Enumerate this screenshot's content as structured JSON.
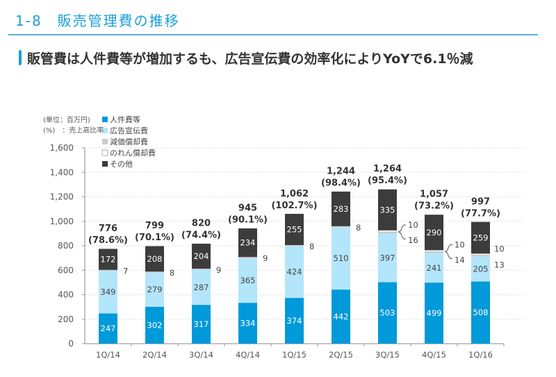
{
  "header": {
    "section_title": "1-8　販売管理費の推移",
    "headline": "販管費は人件費等が増加するも、広告宣伝費の効率化によりYoYで6.1％減"
  },
  "chart_data": {
    "type": "bar",
    "stacked": true,
    "title": "",
    "unit_notes": [
      "(単位：百万円)",
      "(%)　：売上高比率"
    ],
    "xlabel": "",
    "ylabel": "",
    "ylim": [
      0,
      1600
    ],
    "yticks": [
      0,
      200,
      400,
      600,
      800,
      1000,
      1200,
      1400,
      1600
    ],
    "ytick_labels": [
      "0",
      "200",
      "400",
      "600",
      "800",
      "1,000",
      "1,200",
      "1,400",
      "1,600"
    ],
    "grid": true,
    "legend_position": "top-left",
    "categories": [
      "1Q/14",
      "2Q/14",
      "3Q/14",
      "4Q/14",
      "1Q/15",
      "2Q/15",
      "3Q/15",
      "4Q/15",
      "1Q/16"
    ],
    "series": [
      {
        "name": "人件費等",
        "color": "#0099d9",
        "label_color": "#ffffff",
        "values": [
          247,
          302,
          317,
          334,
          374,
          442,
          503,
          499,
          508
        ]
      },
      {
        "name": "広告宣伝費",
        "color": "#b3e5fb",
        "label_color": "#444444",
        "values": [
          349,
          279,
          287,
          365,
          424,
          510,
          397,
          241,
          205
        ]
      },
      {
        "name": "減価償却費",
        "color": "#cccccc",
        "label_color": "#444444",
        "values": [
          7,
          8,
          9,
          9,
          8,
          8,
          16,
          14,
          13
        ]
      },
      {
        "name": "のれん償却費",
        "color": "#ffffff",
        "label_color": "#444444",
        "values": [
          0,
          0,
          0,
          0,
          0,
          0,
          10,
          10,
          10
        ]
      },
      {
        "name": "その他",
        "color": "#3c3c3c",
        "label_color": "#ffffff",
        "values": [
          172,
          208,
          204,
          234,
          255,
          283,
          335,
          290,
          259
        ]
      }
    ],
    "totals": [
      "776",
      "799",
      "820",
      "945",
      "1,062",
      "1,244",
      "1,264",
      "1,057",
      "997"
    ],
    "total_values": [
      776,
      799,
      820,
      945,
      1062,
      1244,
      1264,
      1057,
      997
    ],
    "sales_ratios": [
      "(78.6%)",
      "(70.1%)",
      "(74.4%)",
      "(90.1%)",
      "(102.7%)",
      "(98.4%)",
      "(95.4%)",
      "(73.2%)",
      "(77.7%)"
    ]
  }
}
